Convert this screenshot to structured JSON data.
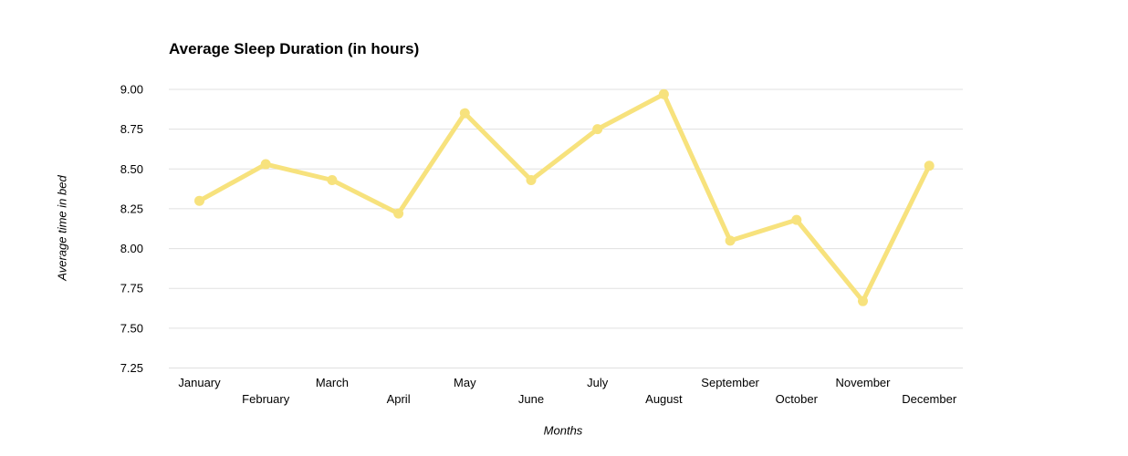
{
  "chart_data": {
    "type": "line",
    "title": "Average Sleep Duration (in hours)",
    "xlabel": "Months",
    "ylabel": "Average time in bed",
    "categories": [
      "January",
      "February",
      "March",
      "April",
      "May",
      "June",
      "July",
      "August",
      "September",
      "October",
      "November",
      "December"
    ],
    "series": [
      {
        "name": "Average time in bed",
        "values": [
          8.3,
          8.53,
          8.43,
          8.22,
          8.85,
          8.43,
          8.75,
          8.97,
          8.05,
          8.18,
          7.67,
          8.52
        ]
      }
    ],
    "yticks": [
      9.0,
      8.75,
      8.5,
      8.25,
      8.0,
      7.75,
      7.5,
      7.25
    ],
    "ytick_labels": [
      "9.00",
      "8.75",
      "8.50",
      "8.25",
      "8.00",
      "7.75",
      "7.50",
      "7.25"
    ],
    "ylim": [
      7.25,
      9.0
    ],
    "grid": true,
    "legend_position": "none",
    "colors": {
      "line": "#F7E27D",
      "grid": "#E0E0E0",
      "text": "#000000",
      "background": "#FFFFFF"
    }
  }
}
